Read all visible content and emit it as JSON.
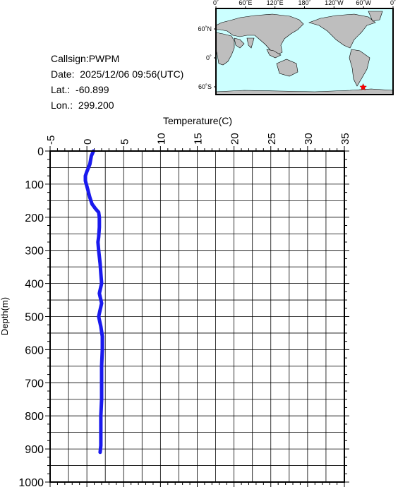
{
  "station": {
    "callsign_label": "Callsign:",
    "callsign": "PWPM",
    "date_label": "Date:",
    "date": "2025/12/06 09:56(UTC)",
    "lat_label": "Lat.:",
    "lat": "-60.899",
    "lon_label": "Lon.:",
    "lon": "299.200"
  },
  "map": {
    "top_labels": [
      "0˚",
      "60˚E",
      "120˚E",
      "180˚",
      "120˚W",
      "60˚W",
      "0˚"
    ],
    "left_labels": [
      "60˚N",
      "0˚",
      "60˚S"
    ],
    "ocean_color": "#ccffff",
    "land_color": "#bebebe",
    "marker_color": "#ff0000",
    "marker": {
      "lon": 299.2,
      "lat": -60.899
    }
  },
  "chart_data": {
    "type": "line",
    "title": "",
    "xlabel": "Temperature(C)",
    "ylabel": "Depth(m)",
    "xlim": [
      -5,
      35
    ],
    "ylim": [
      0,
      1000
    ],
    "y_inverted": true,
    "x_ticks": [
      "-5",
      "0",
      "5",
      "10",
      "15",
      "20",
      "25",
      "30",
      "35"
    ],
    "y_ticks": [
      "0",
      "100",
      "200",
      "300",
      "400",
      "500",
      "600",
      "700",
      "800",
      "900",
      "1000"
    ],
    "grid": true,
    "line_color": "#1a1aee",
    "series": [
      {
        "x": [
          0.9,
          0.6,
          0.4,
          0.0,
          -0.2,
          -0.2,
          0.1,
          0.4,
          0.7,
          1.2,
          1.6,
          1.7,
          1.7,
          1.6,
          1.5,
          1.6,
          1.8,
          1.9,
          2.0,
          1.7,
          2.0,
          1.8,
          1.6,
          1.9,
          2.1,
          2.1,
          2.0,
          2.0,
          2.0,
          1.9,
          1.9,
          1.9,
          1.8
        ],
        "y": [
          0,
          15,
          40,
          62,
          75,
          90,
          115,
          140,
          160,
          175,
          185,
          200,
          230,
          260,
          275,
          300,
          340,
          370,
          400,
          430,
          460,
          480,
          500,
          530,
          560,
          600,
          650,
          700,
          750,
          800,
          850,
          890,
          910
        ]
      }
    ]
  }
}
